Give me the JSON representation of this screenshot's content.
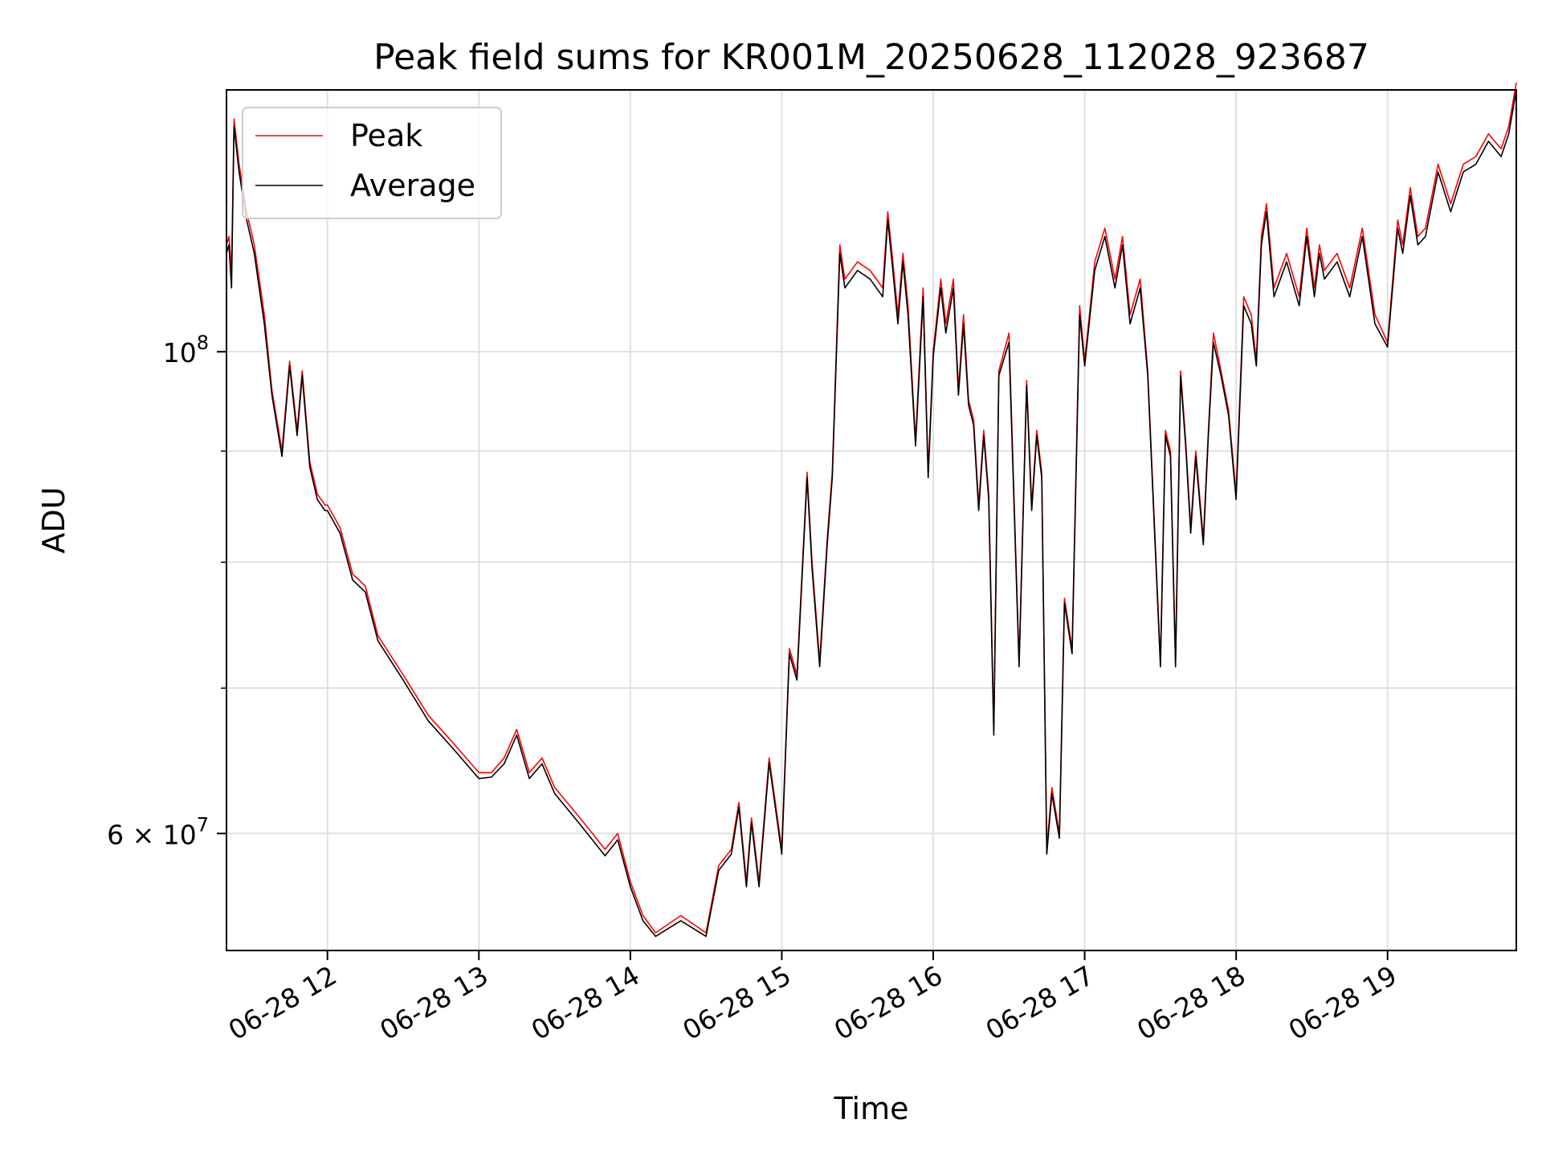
{
  "chart_data": {
    "type": "line",
    "title": "Peak field sums for KR001M_20250628_112028_923687",
    "xlabel": "Time",
    "ylabel": "ADU",
    "y_scale": "log",
    "y_range": [
      53000000,
      132000000
    ],
    "x_range": [
      "06-28 11:20",
      "06-28 19:51"
    ],
    "x_ticks": [
      "06-28 12",
      "06-28 13",
      "06-28 14",
      "06-28 15",
      "06-28 16",
      "06-28 17",
      "06-28 18",
      "06-28 19"
    ],
    "y_tick_labels": [
      {
        "value": 100000000,
        "base": "10",
        "exp": "8"
      },
      {
        "value": 60000000,
        "mantissa": "6",
        "times": "×",
        "base": "10",
        "exp": "7"
      }
    ],
    "y_minor_ticks": [
      70000000,
      80000000,
      90000000
    ],
    "grid": true,
    "legend_position": "upper-left",
    "colors": {
      "peak": "#ff0000",
      "average": "#000000",
      "grid": "#e0e0e0"
    },
    "series": [
      {
        "name": "Peak",
        "color": "#ff0000",
        "x": [
          "06-28 11:20",
          "06-28 11:21",
          "06-28 11:22",
          "06-28 11:23",
          "06-28 11:25",
          "06-28 11:28",
          "06-28 11:31",
          "06-28 11:35",
          "06-28 11:38",
          "06-28 11:42",
          "06-28 11:45",
          "06-28 11:48",
          "06-28 11:50",
          "06-28 11:53",
          "06-28 11:56",
          "06-28 11:59",
          "06-28 12:00",
          "06-28 12:05",
          "06-28 12:10",
          "06-28 12:15",
          "06-28 12:20",
          "06-28 12:30",
          "06-28 12:40",
          "06-28 12:50",
          "06-28 13:00",
          "06-28 13:05",
          "06-28 13:10",
          "06-28 13:15",
          "06-28 13:20",
          "06-28 13:25",
          "06-28 13:30",
          "06-28 13:40",
          "06-28 13:50",
          "06-28 13:55",
          "06-28 14:00",
          "06-28 14:05",
          "06-28 14:10",
          "06-28 14:20",
          "06-28 14:30",
          "06-28 14:35",
          "06-28 14:40",
          "06-28 14:43",
          "06-28 14:46",
          "06-28 14:48",
          "06-28 14:51",
          "06-28 14:55",
          "06-28 15:00",
          "06-28 15:03",
          "06-28 15:06",
          "06-28 15:10",
          "06-28 15:12",
          "06-28 15:15",
          "06-28 15:18",
          "06-28 15:20",
          "06-28 15:23",
          "06-28 15:25",
          "06-28 15:30",
          "06-28 15:35",
          "06-28 15:40",
          "06-28 15:42",
          "06-28 15:44",
          "06-28 15:46",
          "06-28 15:48",
          "06-28 15:50",
          "06-28 15:53",
          "06-28 15:56",
          "06-28 15:58",
          "06-28 16:00",
          "06-28 16:03",
          "06-28 16:05",
          "06-28 16:08",
          "06-28 16:10",
          "06-28 16:12",
          "06-28 16:14",
          "06-28 16:16",
          "06-28 16:18",
          "06-28 16:20",
          "06-28 16:22",
          "06-28 16:24",
          "06-28 16:26",
          "06-28 16:30",
          "06-28 16:34",
          "06-28 16:37",
          "06-28 16:39",
          "06-28 16:41",
          "06-28 16:43",
          "06-28 16:45",
          "06-28 16:47",
          "06-28 16:50",
          "06-28 16:52",
          "06-28 16:55",
          "06-28 16:58",
          "06-28 17:00",
          "06-28 17:04",
          "06-28 17:08",
          "06-28 17:12",
          "06-28 17:15",
          "06-28 17:18",
          "06-28 17:22",
          "06-28 17:25",
          "06-28 17:30",
          "06-28 17:32",
          "06-28 17:34",
          "06-28 17:36",
          "06-28 17:38",
          "06-28 17:40",
          "06-28 17:42",
          "06-28 17:44",
          "06-28 17:47",
          "06-28 17:49",
          "06-28 17:51",
          "06-28 17:54",
          "06-28 17:57",
          "06-28 18:00",
          "06-28 18:03",
          "06-28 18:06",
          "06-28 18:08",
          "06-28 18:10",
          "06-28 18:12",
          "06-28 18:15",
          "06-28 18:20",
          "06-28 18:25",
          "06-28 18:28",
          "06-28 18:31",
          "06-28 18:33",
          "06-28 18:35",
          "06-28 18:40",
          "06-28 18:45",
          "06-28 18:50",
          "06-28 18:55",
          "06-28 19:00",
          "06-28 19:04",
          "06-28 19:06",
          "06-28 19:09",
          "06-28 19:12",
          "06-28 19:15",
          "06-28 19:20",
          "06-28 19:25",
          "06-28 19:30",
          "06-28 19:35",
          "06-28 19:40",
          "06-28 19:45",
          "06-28 19:48",
          "06-28 19:51"
        ],
        "y": [
          112000000,
          113000000,
          109000000,
          128000000,
          122000000,
          116000000,
          112000000,
          104000000,
          96000000,
          90000000,
          99000000,
          92000000,
          98000000,
          89000000,
          86000000,
          85000000,
          85000000,
          83000000,
          79000000,
          78000000,
          74000000,
          71000000,
          68000000,
          66000000,
          64000000,
          64000000,
          65000000,
          67000000,
          64000000,
          65000000,
          63000000,
          61000000,
          59000000,
          60000000,
          57000000,
          55000000,
          54000000,
          55000000,
          54000000,
          58000000,
          59000000,
          62000000,
          57000000,
          61000000,
          57000000,
          65000000,
          59000000,
          73000000,
          71000000,
          88000000,
          80000000,
          72000000,
          82000000,
          88000000,
          112000000,
          108000000,
          110000000,
          109000000,
          107000000,
          116000000,
          110000000,
          104000000,
          111000000,
          105000000,
          91000000,
          107000000,
          88000000,
          100000000,
          108000000,
          103000000,
          108000000,
          96000000,
          104000000,
          95000000,
          93000000,
          85000000,
          92000000,
          86000000,
          67000000,
          98000000,
          102000000,
          72000000,
          97000000,
          85000000,
          92000000,
          88000000,
          59000000,
          63000000,
          60000000,
          77000000,
          73000000,
          105000000,
          99000000,
          110000000,
          114000000,
          108000000,
          113000000,
          104000000,
          108000000,
          98000000,
          72000000,
          92000000,
          90000000,
          72000000,
          98000000,
          91000000,
          83000000,
          90000000,
          82000000,
          92000000,
          102000000,
          98000000,
          94000000,
          86000000,
          106000000,
          104000000,
          99000000,
          113000000,
          117000000,
          107000000,
          111000000,
          106000000,
          114000000,
          107000000,
          112000000,
          109000000,
          111000000,
          107000000,
          114000000,
          104000000,
          101000000,
          115000000,
          112000000,
          119000000,
          113000000,
          114000000,
          122000000,
          117000000,
          122000000,
          123000000,
          126000000,
          124000000,
          127000000,
          133000000
        ]
      },
      {
        "name": "Average",
        "color": "#000000",
        "x": [
          "06-28 11:20",
          "06-28 11:21",
          "06-28 11:22",
          "06-28 11:23",
          "06-28 11:25",
          "06-28 11:28",
          "06-28 11:31",
          "06-28 11:35",
          "06-28 11:38",
          "06-28 11:42",
          "06-28 11:45",
          "06-28 11:48",
          "06-28 11:50",
          "06-28 11:53",
          "06-28 11:56",
          "06-28 11:59",
          "06-28 12:00",
          "06-28 12:05",
          "06-28 12:10",
          "06-28 12:15",
          "06-28 12:20",
          "06-28 12:30",
          "06-28 12:40",
          "06-28 12:50",
          "06-28 13:00",
          "06-28 13:05",
          "06-28 13:10",
          "06-28 13:15",
          "06-28 13:20",
          "06-28 13:25",
          "06-28 13:30",
          "06-28 13:40",
          "06-28 13:50",
          "06-28 13:55",
          "06-28 14:00",
          "06-28 14:05",
          "06-28 14:10",
          "06-28 14:20",
          "06-28 14:30",
          "06-28 14:35",
          "06-28 14:40",
          "06-28 14:43",
          "06-28 14:46",
          "06-28 14:48",
          "06-28 14:51",
          "06-28 14:55",
          "06-28 15:00",
          "06-28 15:03",
          "06-28 15:06",
          "06-28 15:10",
          "06-28 15:12",
          "06-28 15:15",
          "06-28 15:18",
          "06-28 15:20",
          "06-28 15:23",
          "06-28 15:25",
          "06-28 15:30",
          "06-28 15:35",
          "06-28 15:40",
          "06-28 15:42",
          "06-28 15:44",
          "06-28 15:46",
          "06-28 15:48",
          "06-28 15:50",
          "06-28 15:53",
          "06-28 15:56",
          "06-28 15:58",
          "06-28 16:00",
          "06-28 16:03",
          "06-28 16:05",
          "06-28 16:08",
          "06-28 16:10",
          "06-28 16:12",
          "06-28 16:14",
          "06-28 16:16",
          "06-28 16:18",
          "06-28 16:20",
          "06-28 16:22",
          "06-28 16:24",
          "06-28 16:26",
          "06-28 16:30",
          "06-28 16:34",
          "06-28 16:37",
          "06-28 16:39",
          "06-28 16:41",
          "06-28 16:43",
          "06-28 16:45",
          "06-28 16:47",
          "06-28 16:50",
          "06-28 16:52",
          "06-28 16:55",
          "06-28 16:58",
          "06-28 17:00",
          "06-28 17:04",
          "06-28 17:08",
          "06-28 17:12",
          "06-28 17:15",
          "06-28 17:18",
          "06-28 17:22",
          "06-28 17:25",
          "06-28 17:30",
          "06-28 17:32",
          "06-28 17:34",
          "06-28 17:36",
          "06-28 17:38",
          "06-28 17:40",
          "06-28 17:42",
          "06-28 17:44",
          "06-28 17:47",
          "06-28 17:49",
          "06-28 17:51",
          "06-28 17:54",
          "06-28 17:57",
          "06-28 18:00",
          "06-28 18:03",
          "06-28 18:06",
          "06-28 18:08",
          "06-28 18:10",
          "06-28 18:12",
          "06-28 18:15",
          "06-28 18:20",
          "06-28 18:25",
          "06-28 18:28",
          "06-28 18:31",
          "06-28 18:33",
          "06-28 18:35",
          "06-28 18:40",
          "06-28 18:45",
          "06-28 18:50",
          "06-28 18:55",
          "06-28 19:00",
          "06-28 19:04",
          "06-28 19:06",
          "06-28 19:09",
          "06-28 19:12",
          "06-28 19:15",
          "06-28 19:20",
          "06-28 19:25",
          "06-28 19:30",
          "06-28 19:35",
          "06-28 19:40",
          "06-28 19:45",
          "06-28 19:48",
          "06-28 19:51"
        ],
        "y": [
          111000000,
          112000000,
          107000000,
          127000000,
          121000000,
          115000000,
          111000000,
          103000000,
          95500000,
          89500000,
          98500000,
          91500000,
          97500000,
          88500000,
          85500000,
          84500000,
          84500000,
          82500000,
          78500000,
          77500000,
          73600000,
          70600000,
          67600000,
          65600000,
          63600000,
          63700000,
          64600000,
          66600000,
          63600000,
          64600000,
          62600000,
          60600000,
          58600000,
          59600000,
          56700000,
          54700000,
          53800000,
          54700000,
          53800000,
          57700000,
          58700000,
          61700000,
          56700000,
          60700000,
          56700000,
          64700000,
          58700000,
          72600000,
          70600000,
          87500000,
          79500000,
          71600000,
          81500000,
          87500000,
          111000000,
          107000000,
          109000000,
          108000000,
          106000000,
          115000000,
          109000000,
          103000000,
          110000000,
          104000000,
          90500000,
          106000000,
          87500000,
          99500000,
          107000000,
          102000000,
          107000000,
          95500000,
          103000000,
          94500000,
          92500000,
          84500000,
          91500000,
          85500000,
          66600000,
          97500000,
          101000000,
          71600000,
          96500000,
          84500000,
          91500000,
          87500000,
          58700000,
          62600000,
          59700000,
          76600000,
          72600000,
          104000000,
          98500000,
          109000000,
          113000000,
          107000000,
          112000000,
          103000000,
          107000000,
          97500000,
          71600000,
          91500000,
          89500000,
          71600000,
          97500000,
          90500000,
          82500000,
          89500000,
          81500000,
          91500000,
          101000000,
          97500000,
          93500000,
          85500000,
          105000000,
          103000000,
          98500000,
          112000000,
          116000000,
          106000000,
          110000000,
          105000000,
          113000000,
          106000000,
          111000000,
          108000000,
          110000000,
          106000000,
          113000000,
          103000000,
          100500000,
          114000000,
          111000000,
          118000000,
          112000000,
          113000000,
          121000000,
          116000000,
          121000000,
          122000000,
          125000000,
          123000000,
          126000000,
          132000000
        ]
      }
    ]
  }
}
